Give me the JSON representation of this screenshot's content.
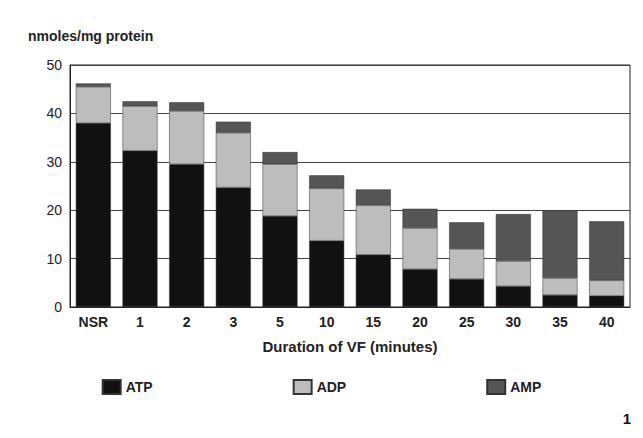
{
  "chart_data": {
    "type": "bar",
    "y_label": "nmoles/mg protein",
    "x_label": "Duration of VF (minutes)",
    "annotation": "1",
    "categories": [
      "NSR",
      "1",
      "2",
      "3",
      "5",
      "10",
      "15",
      "20",
      "25",
      "30",
      "35",
      "40"
    ],
    "series": [
      {
        "name": "ATP",
        "color": "#111111",
        "values": [
          38,
          32.3,
          29.5,
          24.7,
          18.8,
          13.7,
          10.8,
          7.8,
          5.8,
          4.3,
          2.5,
          2.3
        ]
      },
      {
        "name": "ADP",
        "color": "#bdbdbd",
        "values": [
          7.5,
          9.2,
          11,
          11.3,
          10.7,
          10.8,
          10.2,
          8.5,
          6.2,
          5.2,
          3.5,
          3.2
        ]
      },
      {
        "name": "AMP",
        "color": "#555555",
        "values": [
          0.7,
          1.0,
          1.8,
          2.3,
          2.5,
          2.7,
          3.3,
          4.0,
          5.5,
          9.7,
          14,
          12.2
        ]
      }
    ],
    "ylim": [
      0,
      50
    ],
    "yticks": [
      0,
      10,
      20,
      30,
      40,
      50
    ],
    "grid": true,
    "stacked": true,
    "legend": "bottom"
  }
}
